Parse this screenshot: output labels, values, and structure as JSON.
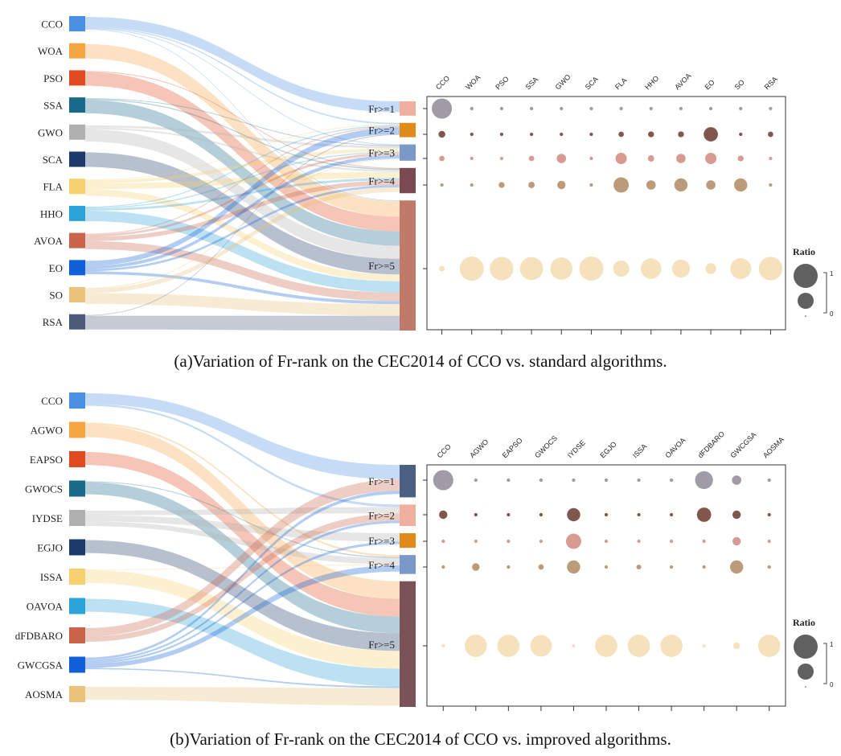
{
  "colors": {
    "bubble_by_rank": [
      "#8e8b98",
      "#6b3a2e",
      "#d08a7f",
      "#b08a63",
      "#f1d7a6"
    ],
    "box_border": "#333333"
  },
  "chart_data": [
    {
      "type": "sankey+bubble",
      "caption": "(a)Variation of Fr-rank on the CEC2014 of CCO vs. standard algorithms.",
      "algorithms": [
        "CCO",
        "WOA",
        "PSO",
        "SSA",
        "GWO",
        "SCA",
        "FLA",
        "HHO",
        "AVOA",
        "EO",
        "SO",
        "RSA"
      ],
      "algorithm_colors": [
        "#4a90e2",
        "#f5a642",
        "#e04a1f",
        "#1a6a8c",
        "#b0b0b0",
        "#1e3a6a",
        "#f7d070",
        "#2aa3d8",
        "#c9634a",
        "#1060d8",
        "#eac27a",
        "#4a5a78"
      ],
      "ranks": [
        "Fr>=1",
        "Fr>=2",
        "Fr>=3",
        "Fr>=4",
        "Fr>=5"
      ],
      "rank_colors": [
        "#f0b0a0",
        "#e08a1a",
        "#7a98c8",
        "#7a4a50",
        "#c07a6a"
      ],
      "ratio": [
        [
          0.7,
          0.02,
          0.02,
          0.02,
          0.02,
          0.02,
          0.02,
          0.02,
          0.02,
          0.02,
          0.02,
          0.02
        ],
        [
          0.08,
          0.02,
          0.02,
          0.02,
          0.02,
          0.02,
          0.05,
          0.06,
          0.06,
          0.35,
          0.02,
          0.05
        ],
        [
          0.05,
          0.02,
          0.02,
          0.05,
          0.15,
          0.02,
          0.22,
          0.07,
          0.15,
          0.22,
          0.06,
          0.02
        ],
        [
          0.02,
          0.02,
          0.06,
          0.07,
          0.12,
          0.02,
          0.4,
          0.15,
          0.3,
          0.15,
          0.3,
          0.02
        ],
        [
          0.05,
          1.0,
          0.95,
          0.92,
          0.85,
          1.0,
          0.45,
          0.72,
          0.55,
          0.2,
          0.75,
          0.95
        ]
      ],
      "legend": {
        "title": "Ratio",
        "max_label": "1",
        "min_label": "0"
      }
    },
    {
      "type": "sankey+bubble",
      "caption": "(b)Variation of Fr-rank on the CEC2014 of CCO vs. improved algorithms.",
      "algorithms": [
        "CCO",
        "AGWO",
        "EAPSO",
        "GWOCS",
        "IYDSE",
        "EGJO",
        "ISSA",
        "OAVOA",
        "dFDBARO",
        "GWCGSA",
        "AOSMA"
      ],
      "algorithm_colors": [
        "#4a90e2",
        "#f5a642",
        "#e04a1f",
        "#1a6a8c",
        "#b0b0b0",
        "#1e3a6a",
        "#f7d070",
        "#2aa3d8",
        "#c9634a",
        "#1060d8",
        "#eac27a"
      ],
      "ranks": [
        "Fr>=1",
        "Fr>=2",
        "Fr>=3",
        "Fr>=4",
        "Fr>=5"
      ],
      "rank_colors": [
        "#4a5f82",
        "#f0b0a0",
        "#e08a1a",
        "#7a98c8",
        "#7a5258"
      ],
      "ratio": [
        [
          0.7,
          0.02,
          0.02,
          0.02,
          0.02,
          0.02,
          0.02,
          0.02,
          0.55,
          0.15,
          0.02
        ],
        [
          0.12,
          0.02,
          0.02,
          0.02,
          0.3,
          0.02,
          0.02,
          0.02,
          0.35,
          0.12,
          0.02
        ],
        [
          0.02,
          0.02,
          0.02,
          0.02,
          0.4,
          0.02,
          0.02,
          0.02,
          0.02,
          0.12,
          0.02
        ],
        [
          0.02,
          0.1,
          0.02,
          0.05,
          0.3,
          0.02,
          0.04,
          0.02,
          0.02,
          0.3,
          0.02
        ],
        [
          0.02,
          0.85,
          0.85,
          0.8,
          0.02,
          0.85,
          0.85,
          0.85,
          0.02,
          0.08,
          0.85
        ]
      ],
      "legend": {
        "title": "Ratio",
        "max_label": "1",
        "min_label": "0"
      }
    }
  ]
}
